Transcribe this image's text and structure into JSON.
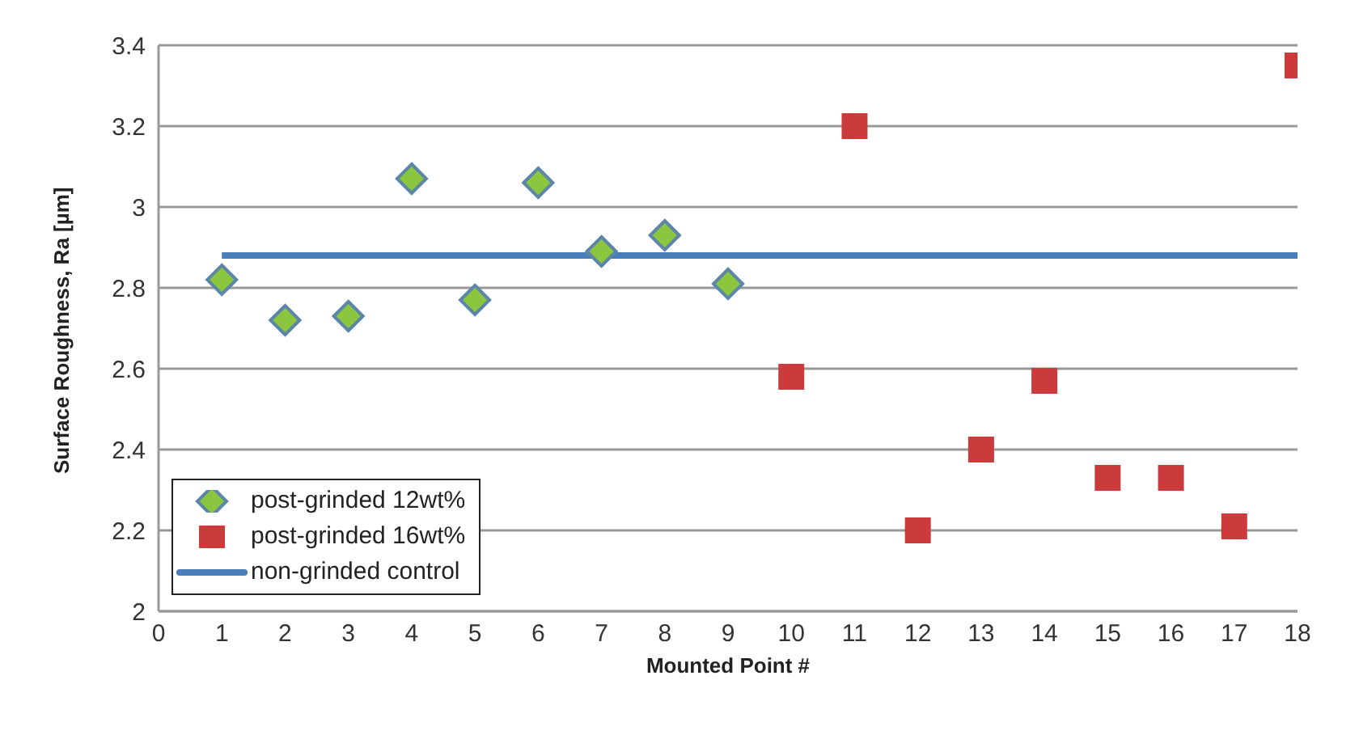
{
  "chart_data": {
    "type": "scatter",
    "xlabel": "Mounted Point #",
    "ylabel": "Surface Roughness, Ra [µm]",
    "xlim": [
      0,
      18
    ],
    "xticks": [
      0,
      1,
      2,
      3,
      4,
      5,
      6,
      7,
      8,
      9,
      10,
      11,
      12,
      13,
      14,
      15,
      16,
      17,
      18
    ],
    "ylim": [
      2,
      3.4
    ],
    "yticks": [
      2,
      2.2,
      2.4,
      2.6,
      2.8,
      3,
      3.2,
      3.4
    ],
    "grid": "y",
    "legend": "bottom left",
    "series": [
      {
        "name": "post-grinded 12wt%",
        "type": "scatter",
        "marker": "diamond",
        "color": "#8cc63e",
        "x": [
          1,
          2,
          3,
          4,
          5,
          6,
          7,
          8,
          9
        ],
        "values": [
          2.82,
          2.72,
          2.73,
          3.07,
          2.77,
          3.06,
          2.89,
          2.93,
          2.81
        ]
      },
      {
        "name": "post-grinded 16wt%",
        "type": "scatter",
        "marker": "square",
        "color": "#cc3b3b",
        "x": [
          10,
          11,
          12,
          13,
          14,
          15,
          16,
          17,
          18
        ],
        "values": [
          2.58,
          3.2,
          2.2,
          2.4,
          2.57,
          2.33,
          2.33,
          2.21,
          3.35
        ]
      },
      {
        "name": "non-grinded control",
        "type": "line",
        "marker": "none",
        "color": "#4a7ebb",
        "x": [
          1,
          18
        ],
        "values": [
          2.88,
          2.88
        ]
      }
    ]
  }
}
